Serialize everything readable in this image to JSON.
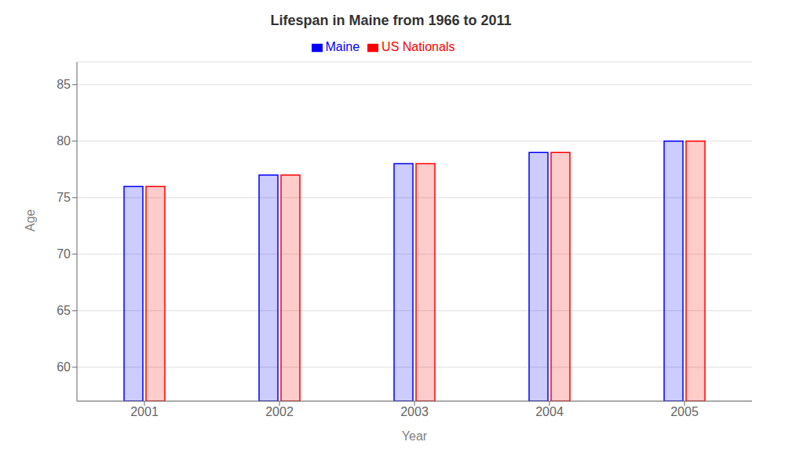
{
  "chart_data": {
    "type": "bar",
    "title": "Lifespan in Maine from 1966 to 2011",
    "xlabel": "Year",
    "ylabel": "Age",
    "categories": [
      "2001",
      "2002",
      "2003",
      "2004",
      "2005"
    ],
    "series": [
      {
        "name": "Maine",
        "color": "#0000ff",
        "values": [
          76,
          77,
          78,
          79,
          80
        ]
      },
      {
        "name": "US Nationals",
        "color": "#ff0000",
        "values": [
          76,
          77,
          78,
          79,
          80
        ]
      }
    ],
    "ylim": [
      57,
      87
    ],
    "yticks": [
      60,
      65,
      70,
      75,
      80,
      85
    ],
    "grid": true,
    "legend": "top"
  }
}
